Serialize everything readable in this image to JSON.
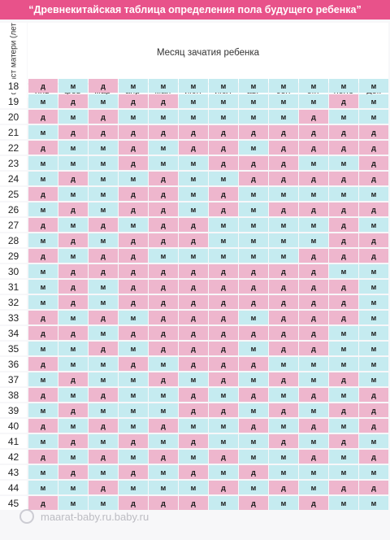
{
  "title": "“Древнекитайская таблица определения пола будущего ребенка”",
  "header": {
    "month_caption": "Месяц зачатия ребенка",
    "age_caption": "Возраст матери (лет)",
    "months": [
      "янв",
      "фев",
      "мар",
      "апр",
      "май",
      "июн",
      "июл",
      "авг",
      "сен",
      "окт",
      "нояб",
      "дек"
    ]
  },
  "colors": {
    "girl": "#eeb6cd",
    "boy": "#c5ebf0",
    "title_bg": "#e8528a"
  },
  "rows": [
    {
      "age": "18",
      "cells": [
        "д",
        "м",
        "д",
        "м",
        "м",
        "м",
        "м",
        "м",
        "м",
        "м",
        "м",
        "м"
      ]
    },
    {
      "age": "19",
      "cells": [
        "м",
        "д",
        "м",
        "д",
        "д",
        "м",
        "м",
        "м",
        "м",
        "м",
        "д",
        "м"
      ]
    },
    {
      "age": "20",
      "cells": [
        "д",
        "м",
        "д",
        "м",
        "м",
        "м",
        "м",
        "м",
        "м",
        "д",
        "м",
        "м"
      ]
    },
    {
      "age": "21",
      "cells": [
        "м",
        "д",
        "д",
        "д",
        "д",
        "д",
        "д",
        "д",
        "д",
        "д",
        "д",
        "д"
      ]
    },
    {
      "age": "22",
      "cells": [
        "д",
        "м",
        "м",
        "д",
        "м",
        "д",
        "д",
        "м",
        "д",
        "д",
        "д",
        "д"
      ]
    },
    {
      "age": "23",
      "cells": [
        "м",
        "м",
        "м",
        "д",
        "м",
        "м",
        "д",
        "д",
        "д",
        "м",
        "м",
        "д"
      ]
    },
    {
      "age": "24",
      "cells": [
        "м",
        "д",
        "м",
        "м",
        "д",
        "м",
        "м",
        "д",
        "д",
        "д",
        "д",
        "д"
      ]
    },
    {
      "age": "25",
      "cells": [
        "д",
        "м",
        "м",
        "д",
        "д",
        "м",
        "д",
        "м",
        "м",
        "м",
        "м",
        "м"
      ]
    },
    {
      "age": "26",
      "cells": [
        "м",
        "д",
        "м",
        "д",
        "д",
        "м",
        "д",
        "м",
        "д",
        "д",
        "д",
        "д"
      ]
    },
    {
      "age": "27",
      "cells": [
        "д",
        "м",
        "д",
        "м",
        "д",
        "д",
        "м",
        "м",
        "м",
        "м",
        "д",
        "м"
      ]
    },
    {
      "age": "28",
      "cells": [
        "м",
        "д",
        "м",
        "д",
        "д",
        "д",
        "м",
        "м",
        "м",
        "м",
        "д",
        "д"
      ]
    },
    {
      "age": "29",
      "cells": [
        "д",
        "м",
        "д",
        "д",
        "м",
        "м",
        "м",
        "м",
        "м",
        "д",
        "д",
        "д"
      ]
    },
    {
      "age": "30",
      "cells": [
        "м",
        "д",
        "д",
        "д",
        "д",
        "д",
        "д",
        "д",
        "д",
        "д",
        "м",
        "м"
      ]
    },
    {
      "age": "31",
      "cells": [
        "м",
        "д",
        "м",
        "д",
        "д",
        "д",
        "д",
        "д",
        "д",
        "д",
        "д",
        "м"
      ]
    },
    {
      "age": "32",
      "cells": [
        "м",
        "д",
        "м",
        "д",
        "д",
        "д",
        "д",
        "д",
        "д",
        "д",
        "д",
        "м"
      ]
    },
    {
      "age": "33",
      "cells": [
        "д",
        "м",
        "д",
        "м",
        "д",
        "д",
        "д",
        "м",
        "д",
        "д",
        "д",
        "м"
      ]
    },
    {
      "age": "34",
      "cells": [
        "д",
        "д",
        "м",
        "д",
        "д",
        "д",
        "д",
        "д",
        "д",
        "д",
        "м",
        "м"
      ]
    },
    {
      "age": "35",
      "cells": [
        "м",
        "м",
        "д",
        "м",
        "д",
        "д",
        "д",
        "м",
        "д",
        "д",
        "м",
        "м"
      ]
    },
    {
      "age": "36",
      "cells": [
        "д",
        "м",
        "м",
        "д",
        "м",
        "д",
        "д",
        "д",
        "м",
        "м",
        "м",
        "м"
      ]
    },
    {
      "age": "37",
      "cells": [
        "м",
        "д",
        "м",
        "м",
        "д",
        "м",
        "д",
        "м",
        "д",
        "м",
        "д",
        "м"
      ]
    },
    {
      "age": "38",
      "cells": [
        "д",
        "м",
        "д",
        "м",
        "м",
        "д",
        "м",
        "д",
        "м",
        "д",
        "м",
        "д"
      ]
    },
    {
      "age": "39",
      "cells": [
        "м",
        "д",
        "м",
        "м",
        "м",
        "д",
        "д",
        "м",
        "д",
        "м",
        "д",
        "д"
      ]
    },
    {
      "age": "40",
      "cells": [
        "д",
        "м",
        "д",
        "м",
        "д",
        "м",
        "м",
        "д",
        "м",
        "д",
        "м",
        "д"
      ]
    },
    {
      "age": "41",
      "cells": [
        "м",
        "д",
        "м",
        "д",
        "м",
        "д",
        "м",
        "м",
        "д",
        "м",
        "д",
        "м"
      ]
    },
    {
      "age": "42",
      "cells": [
        "д",
        "м",
        "д",
        "м",
        "д",
        "м",
        "д",
        "м",
        "м",
        "д",
        "м",
        "д"
      ]
    },
    {
      "age": "43",
      "cells": [
        "м",
        "д",
        "м",
        "д",
        "м",
        "д",
        "м",
        "д",
        "м",
        "м",
        "м",
        "м"
      ]
    },
    {
      "age": "44",
      "cells": [
        "м",
        "м",
        "д",
        "м",
        "м",
        "м",
        "д",
        "м",
        "д",
        "м",
        "д",
        "д"
      ]
    },
    {
      "age": "45",
      "cells": [
        "д",
        "м",
        "м",
        "д",
        "д",
        "д",
        "м",
        "д",
        "м",
        "д",
        "м",
        "м"
      ]
    }
  ],
  "watermark": "maarat-baby.ru.baby.ru"
}
